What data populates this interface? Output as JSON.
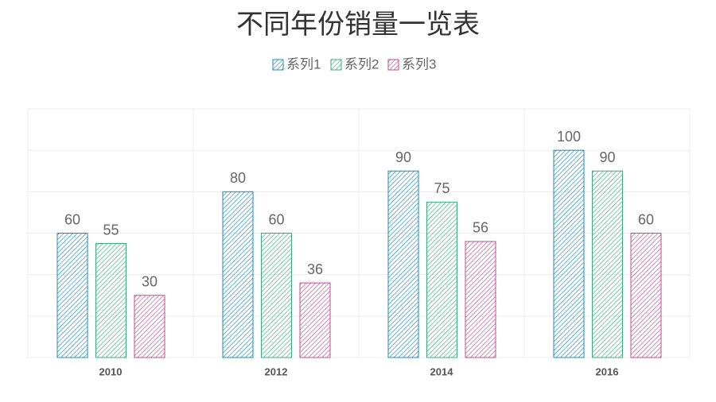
{
  "chart_data": {
    "type": "bar",
    "title": "不同年份销量一览表",
    "categories": [
      "2010",
      "2012",
      "2014",
      "2016"
    ],
    "series": [
      {
        "name": "系列1",
        "color": "#1b8cbf",
        "values": [
          60,
          80,
          90,
          100
        ]
      },
      {
        "name": "系列2",
        "color": "#3aae7c",
        "values": [
          55,
          60,
          75,
          90
        ]
      },
      {
        "name": "系列3",
        "color": "#c04e88",
        "values": [
          30,
          36,
          56,
          60
        ]
      }
    ],
    "ylim": [
      0,
      120
    ],
    "yticks": [
      0,
      20,
      40,
      60,
      80,
      100,
      120
    ],
    "grid": true,
    "pattern": "hatch",
    "legend": "top"
  }
}
